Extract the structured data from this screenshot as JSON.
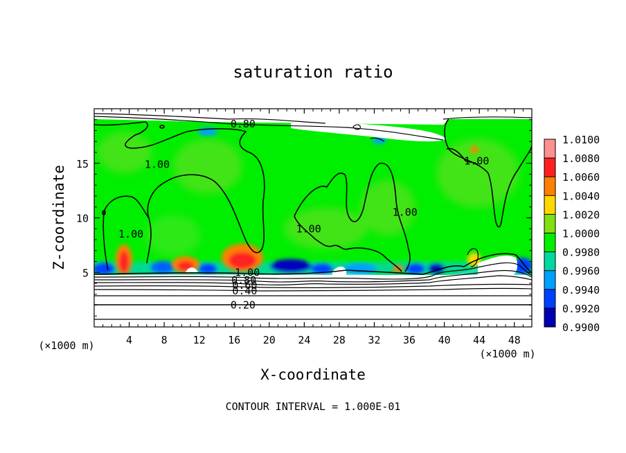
{
  "chart_data": {
    "type": "heatmap",
    "title": "saturation ratio",
    "xlabel": "X-coordinate",
    "ylabel": "Z-coordinate",
    "x_unit_label": "(×1000 m)",
    "y_unit_label": "(×1000 m)",
    "xlim": [
      0,
      50
    ],
    "ylim": [
      0,
      20
    ],
    "x_ticks": [
      4,
      8,
      12,
      16,
      20,
      24,
      28,
      32,
      36,
      40,
      44,
      48
    ],
    "y_ticks": [
      5,
      10,
      15
    ],
    "footer": "CONTOUR INTERVAL = 1.000E-01",
    "colorbar": {
      "levels": [
        "1.0100",
        "1.0080",
        "1.0060",
        "1.0040",
        "1.0020",
        "1.0000",
        "0.9980",
        "0.9960",
        "0.9940",
        "0.9920",
        "0.9900"
      ],
      "bands": [
        "#ff9090",
        "#ff2020",
        "#ff8000",
        "#ffd800",
        "#80e010",
        "#00ee00",
        "#00d8a0",
        "#00a0ff",
        "#0040ff",
        "#0000b0"
      ]
    },
    "contour_labels": [
      {
        "text": "0.80",
        "x": 17.0,
        "y": 18.6
      },
      {
        "text": "1.00",
        "x": 7.2,
        "y": 14.9
      },
      {
        "text": "1.00",
        "x": 4.2,
        "y": 8.5
      },
      {
        "text": "1.00",
        "x": 24.5,
        "y": 9.0
      },
      {
        "text": "1.00",
        "x": 35.5,
        "y": 10.5
      },
      {
        "text": "1.00",
        "x": 43.7,
        "y": 15.2
      },
      {
        "text": "1.00",
        "x": 17.5,
        "y": 5.0
      },
      {
        "text": "0.80",
        "x": 17.1,
        "y": 4.3
      },
      {
        "text": "0.60",
        "x": 17.2,
        "y": 3.8
      },
      {
        "text": "0.40",
        "x": 17.2,
        "y": 3.3
      },
      {
        "text": "0.20",
        "x": 17.0,
        "y": 2.0
      }
    ],
    "field": {
      "background": "#00ee00",
      "low_stable_layer_top": 5.0,
      "warm_spots": [
        {
          "x": 3.5,
          "y": 6.2,
          "value": 1.009
        },
        {
          "x": 10.5,
          "y": 5.6,
          "value": 1.01
        },
        {
          "x": 16.8,
          "y": 6.2,
          "value": 1.009
        },
        {
          "x": 43.0,
          "y": 5.8,
          "value": 1.004
        }
      ]
    }
  }
}
